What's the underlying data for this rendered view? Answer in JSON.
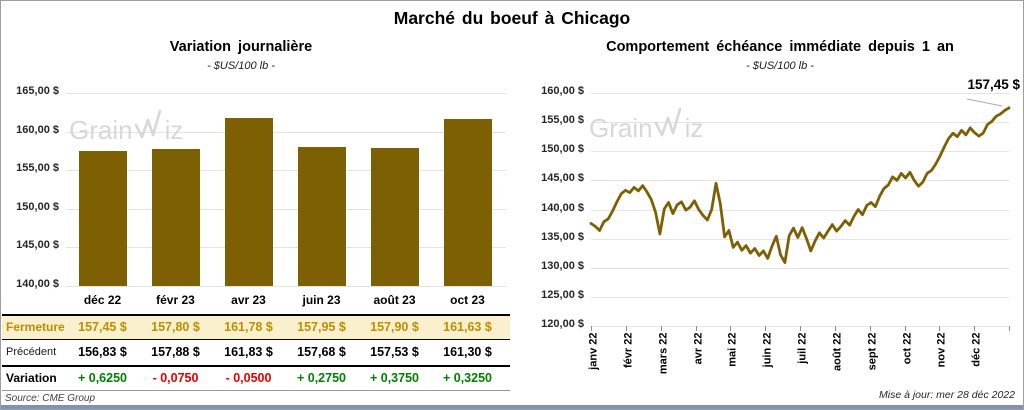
{
  "page": {
    "title": "Marché du boeuf à Chicago"
  },
  "brand": {
    "full": "GrainWiz",
    "part1": "Grain",
    "part2": "iz"
  },
  "footer": {
    "source": "Source: CME Group",
    "updated": "Mise à jour: mer 28 déc 2022"
  },
  "colors": {
    "gold": "#7d5f04",
    "cream": "#fbf0ce",
    "gold_text": "#bf8f00",
    "up_green": "#008000",
    "down_red": "#e60000",
    "grid": "#e4e4e4",
    "watermark": "#d8d8d8",
    "bottom_strip": "#7f92b2"
  },
  "chart_data": [
    {
      "type": "bar",
      "title": "Variation journalière",
      "subtitle": "- $US/100 lb -",
      "categories": [
        "déc 22",
        "févr 23",
        "avr 23",
        "juin 23",
        "août 23",
        "oct 23"
      ],
      "values": [
        157.45,
        157.8,
        161.78,
        157.95,
        157.9,
        161.63
      ],
      "ylim": [
        140,
        165
      ],
      "ytick_labels": [
        "165,00 $",
        "160,00 $",
        "155,00 $",
        "150,00 $",
        "145,00 $",
        "140,00 $"
      ],
      "bar_color": "#7d5f04",
      "xlabel": "",
      "ylabel": "",
      "grid": true,
      "legend": "none"
    },
    {
      "type": "line",
      "title": "Comportement échéance immédiate depuis 1 an",
      "subtitle": "- $US/100 lb -",
      "x_labels": [
        "janv 22",
        "févr 22",
        "mars 22",
        "avr 22",
        "mai 22",
        "juin 22",
        "juil 22",
        "août 22",
        "sept 22",
        "oct 22",
        "nov 22",
        "déc 22"
      ],
      "values": [
        137.6,
        137.1,
        136.4,
        137.9,
        138.4,
        139.7,
        141.3,
        142.7,
        143.3,
        142.9,
        143.8,
        143.2,
        144.1,
        143.0,
        141.7,
        139.5,
        135.8,
        140.1,
        141.2,
        139.3,
        140.8,
        141.3,
        139.9,
        140.4,
        141.5,
        140.0,
        139.0,
        138.2,
        140.0,
        144.5,
        141.0,
        135.3,
        136.4,
        133.5,
        134.4,
        133.0,
        133.8,
        132.5,
        133.3,
        132.1,
        132.9,
        131.6,
        133.7,
        135.4,
        132.2,
        130.9,
        135.5,
        136.8,
        135.2,
        136.9,
        135.0,
        132.9,
        134.6,
        136.0,
        135.1,
        136.3,
        137.4,
        136.3,
        137.1,
        138.1,
        137.3,
        138.8,
        140.0,
        139.1,
        140.7,
        141.2,
        140.5,
        142.3,
        143.6,
        144.2,
        145.6,
        145.0,
        146.2,
        145.4,
        146.4,
        145.0,
        144.0,
        144.7,
        146.2,
        146.7,
        147.8,
        149.2,
        150.8,
        152.2,
        153.1,
        152.5,
        153.6,
        152.8,
        154.0,
        153.2,
        152.6,
        153.1,
        154.6,
        155.1,
        156.0,
        156.4,
        157.0,
        157.45
      ],
      "ylim": [
        120,
        160
      ],
      "ytick_labels": [
        "160,00 $",
        "155,00 $",
        "150,00 $",
        "145,00 $",
        "140,00 $",
        "135,00 $",
        "130,00 $",
        "125,00 $",
        "120,00 $"
      ],
      "line_color": "#7d5f04",
      "annotation": {
        "text": "157,45 $",
        "value": 157.45
      },
      "xlabel": "",
      "ylabel": "",
      "grid": true,
      "legend": "none"
    }
  ],
  "table": {
    "rows": [
      {
        "label": "Fermeture",
        "style": "fermeture",
        "values": [
          "157,45 $",
          "157,80 $",
          "161,78 $",
          "157,95 $",
          "157,90 $",
          "161,63 $"
        ]
      },
      {
        "label": "Précédent",
        "style": "precedent",
        "values": [
          "156,83 $",
          "157,88 $",
          "161,83 $",
          "157,68 $",
          "157,53 $",
          "161,30 $"
        ]
      },
      {
        "label": "Variation",
        "style": "variation",
        "values": [
          {
            "text": "+ 0,6250",
            "dir": "up"
          },
          {
            "text": "- 0,0750",
            "dir": "down"
          },
          {
            "text": "- 0,0500",
            "dir": "down"
          },
          {
            "text": "+ 0,2750",
            "dir": "up"
          },
          {
            "text": "+ 0,3750",
            "dir": "up"
          },
          {
            "text": "+ 0,3250",
            "dir": "up"
          }
        ]
      }
    ]
  }
}
